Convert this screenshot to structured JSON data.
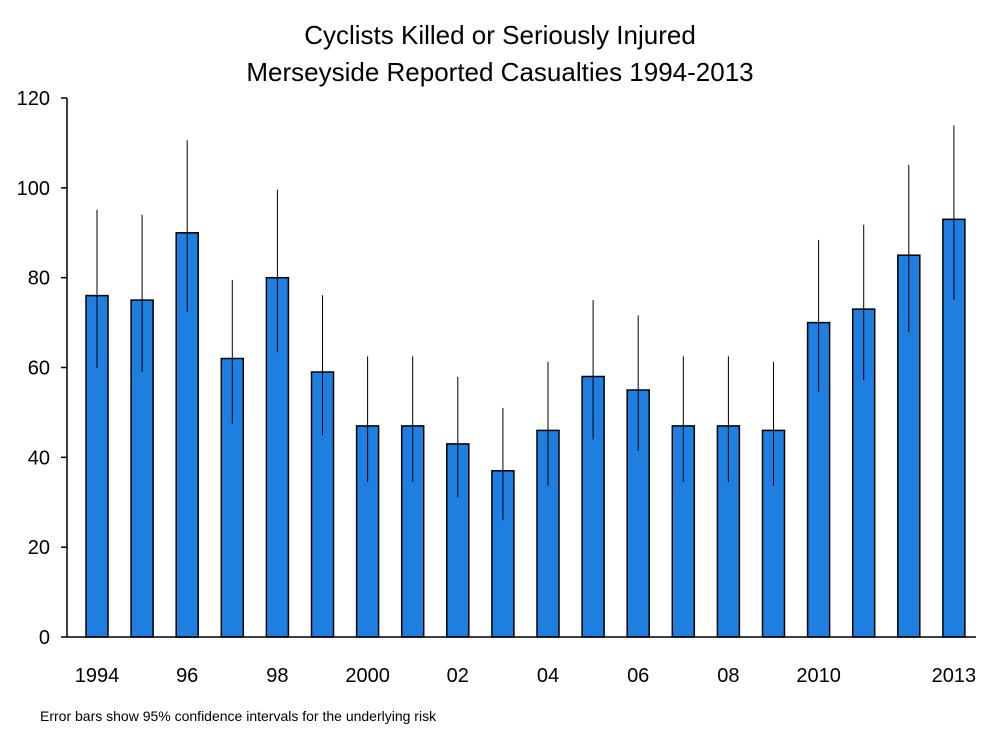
{
  "chart_data": {
    "type": "bar",
    "title": "Cyclists Killed or Seriously Injured",
    "subtitle": "Merseyside Reported Casualties 1994-2013",
    "footnote": "Error bars show 95% confidence intervals for the underlying risk",
    "x": [
      1994,
      1995,
      1996,
      1997,
      1998,
      1999,
      2000,
      2001,
      2002,
      2003,
      2004,
      2005,
      2006,
      2007,
      2008,
      2009,
      2010,
      2011,
      2012,
      2013
    ],
    "x_tick_labels": [
      "1994",
      "",
      "96",
      "",
      "98",
      "",
      "2000",
      "",
      "02",
      "",
      "04",
      "",
      "06",
      "",
      "08",
      "",
      "2010",
      "",
      "",
      "2013"
    ],
    "values": [
      76,
      75,
      90,
      62,
      80,
      59,
      47,
      47,
      43,
      37,
      46,
      58,
      55,
      47,
      47,
      46,
      70,
      73,
      85,
      93
    ],
    "ci_lower": [
      59.9,
      59,
      72.4,
      47.5,
      63.4,
      44.9,
      34.5,
      34.5,
      31.1,
      26,
      33.7,
      44,
      41.4,
      34.5,
      34.5,
      33.7,
      54.6,
      57.2,
      67.9,
      75.1
    ],
    "ci_upper": [
      95.1,
      94,
      110.6,
      79.5,
      99.6,
      76.1,
      62.5,
      62.5,
      57.9,
      51,
      61.3,
      75,
      71.6,
      62.5,
      62.5,
      61.3,
      88.4,
      91.8,
      105.1,
      113.9
    ],
    "ylim": [
      0,
      120
    ],
    "y_ticks": [
      0,
      20,
      40,
      60,
      80,
      100,
      120
    ],
    "xlabel": "",
    "ylabel": "",
    "grid": false,
    "colors": {
      "bar_fill": "#1f7fe0",
      "bar_stroke": "#000000",
      "error_bar": "#000000",
      "axis": "#000000"
    }
  }
}
